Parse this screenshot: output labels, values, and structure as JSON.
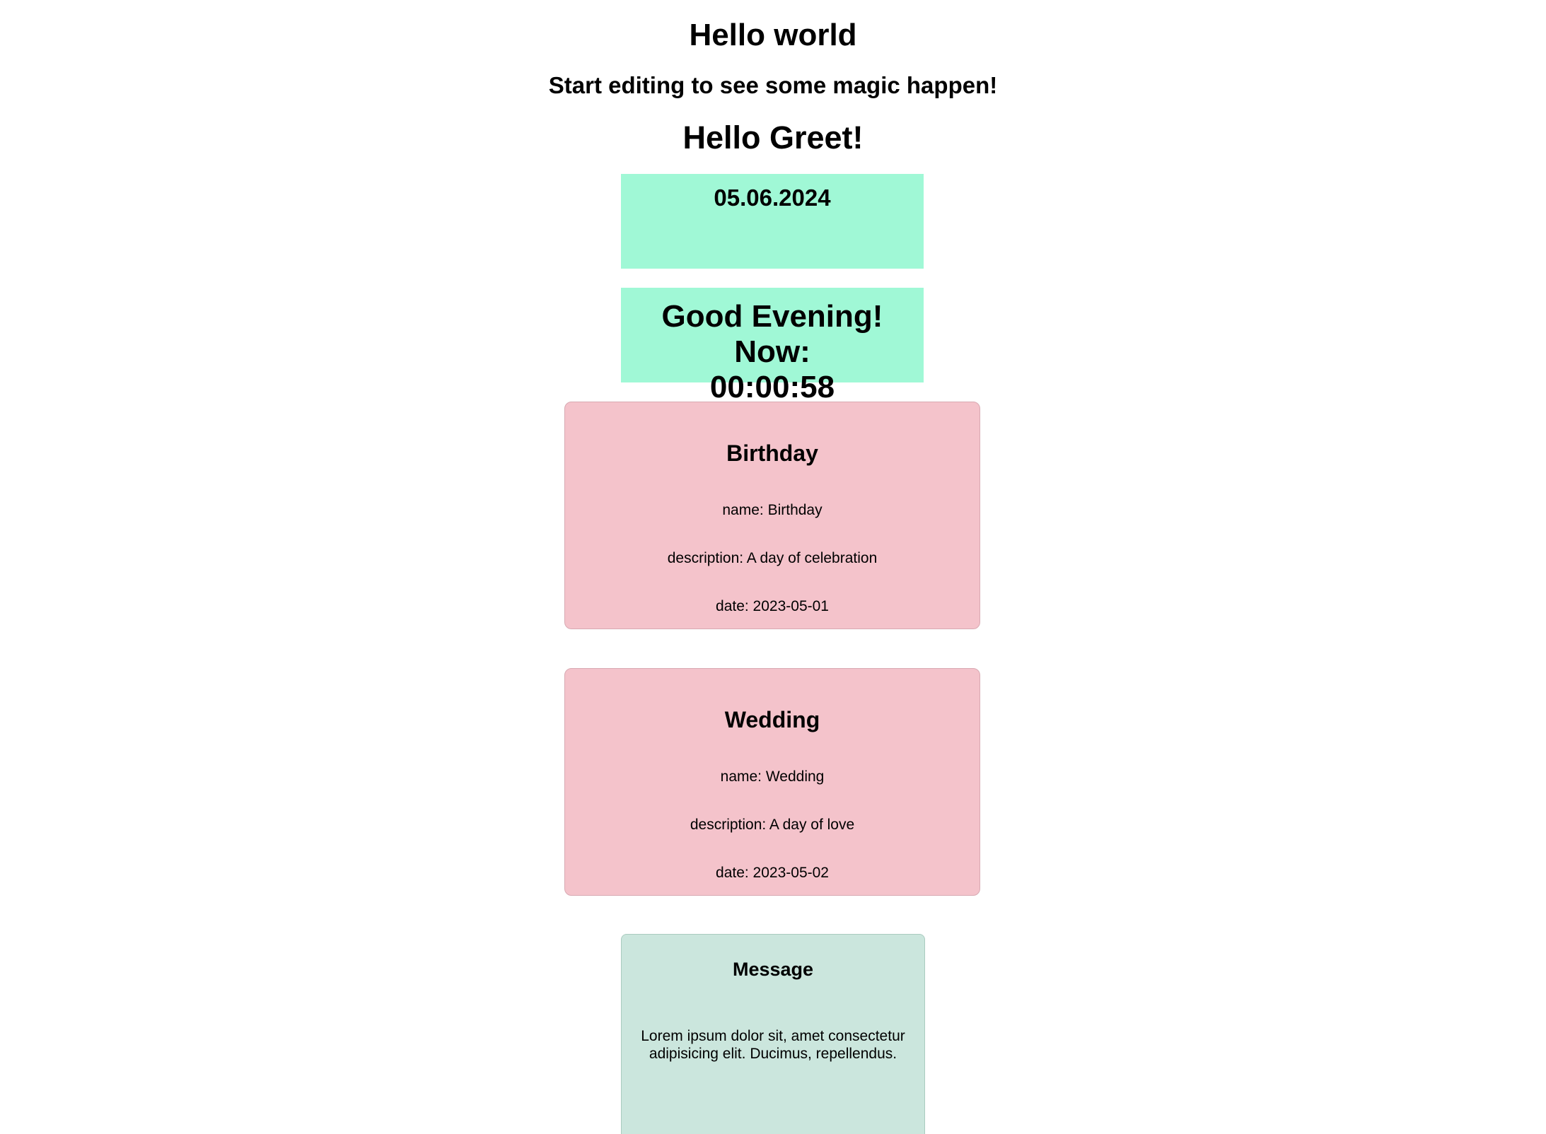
{
  "header": {
    "title": "Hello world",
    "subtitle": "Start editing to see some magic happen!",
    "greeting": "Hello Greet!"
  },
  "date_box": {
    "date": "05.06.2024",
    "background": "#a0f8d6"
  },
  "greeting_box": {
    "text": "Good Evening! Now:",
    "time": "00:00:58"
  },
  "events": [
    {
      "title": "Birthday",
      "name_line": "name: Birthday",
      "description_line": "description: A day of celebration",
      "date_line": "date: 2023-05-01"
    },
    {
      "title": "Wedding",
      "name_line": "name: Wedding",
      "description_line": "description: A day of love",
      "date_line": "date: 2023-05-02"
    }
  ],
  "event_card_color": "#f4c3cb",
  "message": {
    "title": "Message",
    "body": "Lorem ipsum dolor sit, amet consectetur adipisicing elit. Ducimus, repellendus.",
    "background": "#cbe6dd"
  }
}
